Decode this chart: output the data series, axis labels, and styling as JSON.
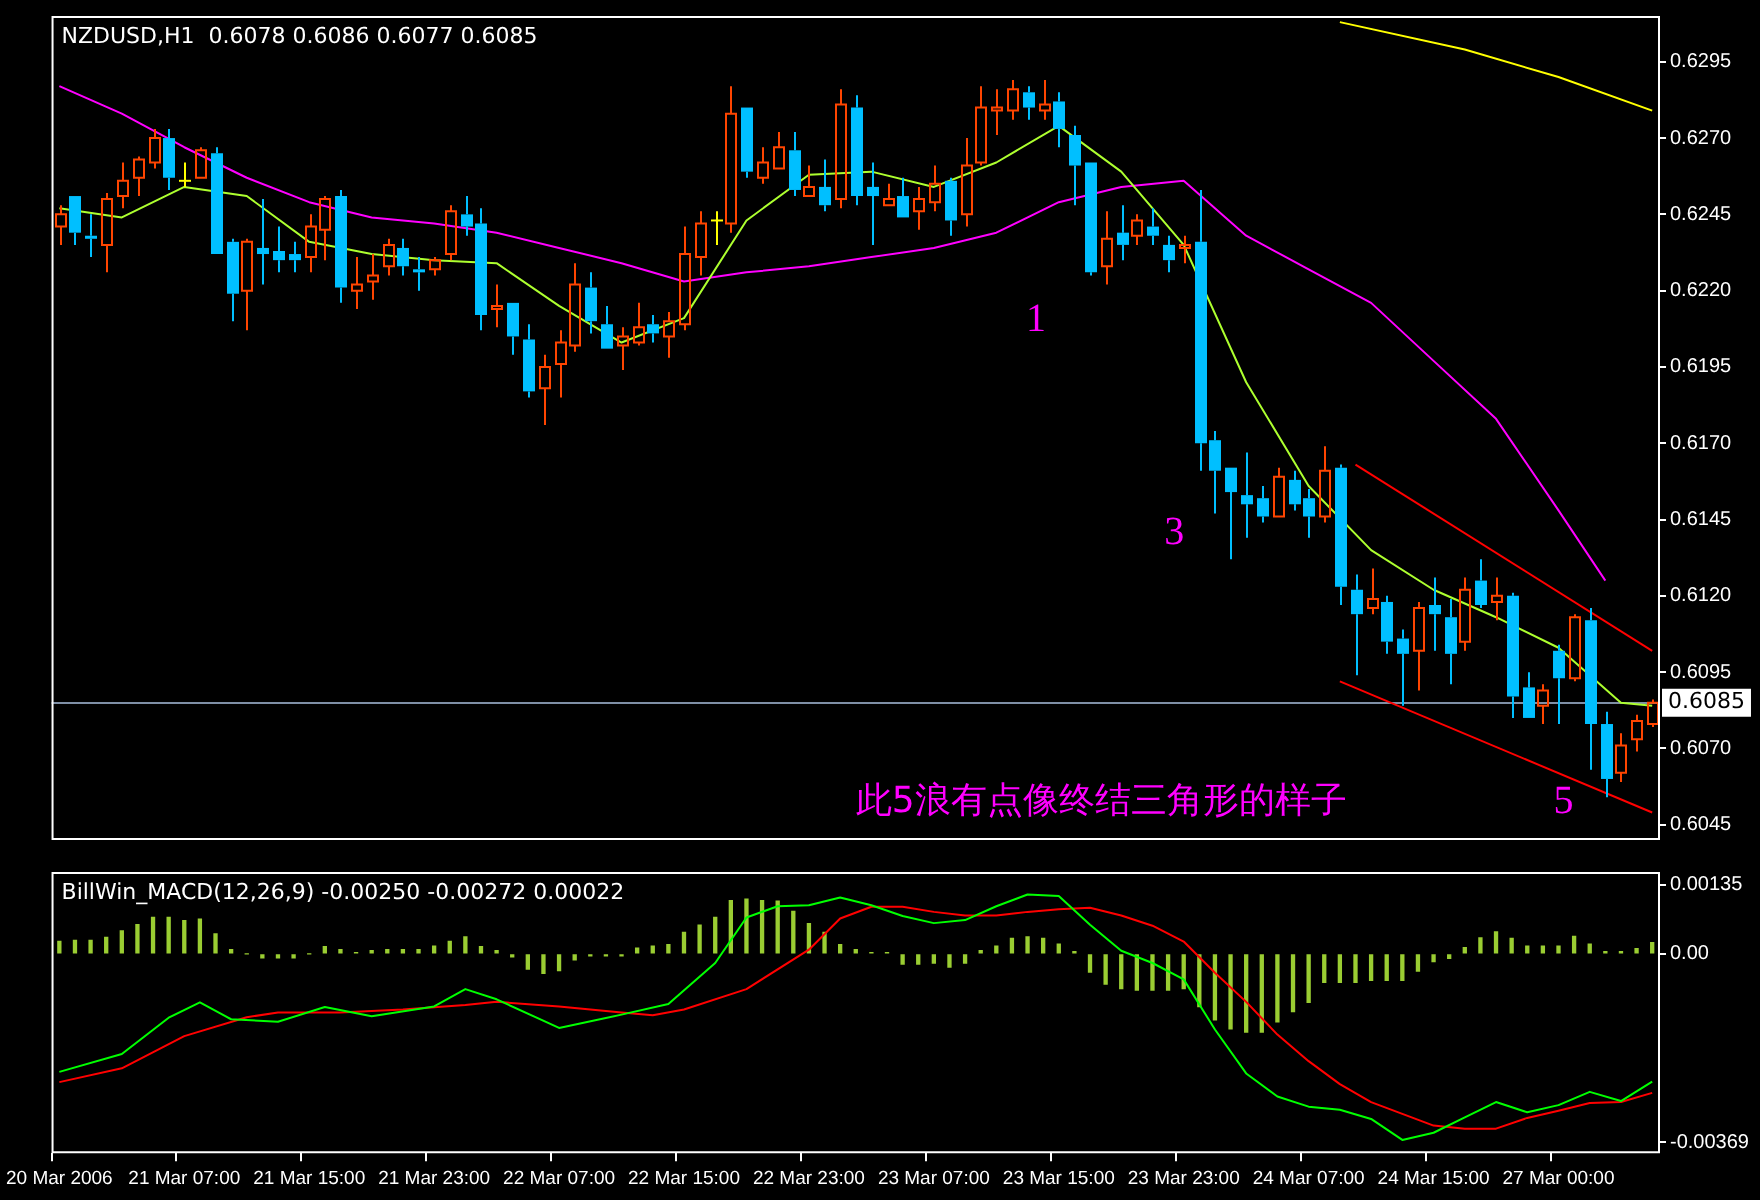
{
  "chart_data": [
    {
      "type": "candlestick",
      "title": "NZDUSD,H1  0.6078 0.6086 0.6077 0.6085",
      "tick_labels": "y",
      "categories": [
        null,
        null,
        null,
        null,
        null,
        null,
        null,
        null,
        null,
        null,
        null,
        null,
        null,
        null,
        null,
        null,
        null,
        null,
        null,
        null,
        null,
        null,
        null,
        null,
        null,
        null,
        null,
        null,
        null,
        null,
        null,
        null,
        null,
        null,
        null,
        null,
        null,
        null,
        null,
        null,
        null,
        null,
        null,
        null,
        null,
        null,
        null,
        null,
        null,
        null,
        null,
        null,
        null,
        null,
        null,
        null,
        null,
        null,
        null,
        null,
        null,
        null,
        null,
        null,
        null,
        null,
        null,
        null,
        null,
        null,
        null,
        null,
        null,
        null,
        null,
        null,
        null,
        null,
        null,
        null,
        null,
        null,
        null,
        null,
        null,
        null,
        null,
        null,
        null,
        null,
        null,
        null,
        null,
        null,
        null,
        null,
        null,
        null,
        null,
        null,
        null,
        null,
        null
      ],
      "ohlc": [
        [
          0.6241,
          0.6248,
          0.6235,
          0.6245
        ],
        [
          0.6251,
          0.6251,
          0.6235,
          0.6239
        ],
        [
          0.6238,
          0.6245,
          0.6231,
          0.6237
        ],
        [
          0.6235,
          0.6252,
          0.6226,
          0.625
        ],
        [
          0.6251,
          0.6262,
          0.6247,
          0.6256
        ],
        [
          0.6257,
          0.6264,
          0.6251,
          0.6263
        ],
        [
          0.6262,
          0.6273,
          0.626,
          0.627
        ],
        [
          0.627,
          0.6273,
          0.6253,
          0.6257
        ],
        [
          0.6256,
          0.6262,
          0.6254,
          0.6256
        ],
        [
          0.6257,
          0.6267,
          0.6257,
          0.6266
        ],
        [
          0.6265,
          0.6267,
          0.6232,
          0.6232
        ],
        [
          0.6236,
          0.6237,
          0.621,
          0.6219
        ],
        [
          0.622,
          0.6237,
          0.6207,
          0.6236
        ],
        [
          0.6234,
          0.625,
          0.6222,
          0.6232
        ],
        [
          0.6233,
          0.6241,
          0.6226,
          0.623
        ],
        [
          0.6232,
          0.6236,
          0.6226,
          0.623
        ],
        [
          0.6231,
          0.6245,
          0.6226,
          0.6241
        ],
        [
          0.624,
          0.6251,
          0.623,
          0.625
        ],
        [
          0.6251,
          0.6253,
          0.6216,
          0.6221
        ],
        [
          0.622,
          0.6231,
          0.6214,
          0.6222
        ],
        [
          0.6223,
          0.6232,
          0.6217,
          0.6225
        ],
        [
          0.6228,
          0.6237,
          0.6225,
          0.6235
        ],
        [
          0.6234,
          0.6237,
          0.6225,
          0.6228
        ],
        [
          0.6227,
          0.6231,
          0.622,
          0.6226
        ],
        [
          0.6227,
          0.6231,
          0.6225,
          0.623
        ],
        [
          0.6232,
          0.6248,
          0.623,
          0.6246
        ],
        [
          0.6245,
          0.6251,
          0.6238,
          0.6241
        ],
        [
          0.6242,
          0.6247,
          0.6207,
          0.6212
        ],
        [
          0.6214,
          0.6222,
          0.6208,
          0.6215
        ],
        [
          0.6216,
          0.6216,
          0.6199,
          0.6205
        ],
        [
          0.6204,
          0.6209,
          0.6185,
          0.6187
        ],
        [
          0.6188,
          0.6199,
          0.6176,
          0.6195
        ],
        [
          0.6196,
          0.6207,
          0.6185,
          0.6203
        ],
        [
          0.6202,
          0.6229,
          0.62,
          0.6222
        ],
        [
          0.6221,
          0.6226,
          0.6206,
          0.621
        ],
        [
          0.6209,
          0.6215,
          0.6201,
          0.6201
        ],
        [
          0.6202,
          0.6208,
          0.6194,
          0.6205
        ],
        [
          0.6203,
          0.6216,
          0.6202,
          0.6208
        ],
        [
          0.6209,
          0.6212,
          0.6203,
          0.6206
        ],
        [
          0.6205,
          0.6213,
          0.6198,
          0.621
        ],
        [
          0.6209,
          0.6241,
          0.6207,
          0.6232
        ],
        [
          0.6231,
          0.6246,
          0.6225,
          0.6242
        ],
        [
          0.6243,
          0.6246,
          0.6235,
          0.6243
        ],
        [
          0.6242,
          0.6287,
          0.6239,
          0.6278
        ],
        [
          0.628,
          0.628,
          0.6257,
          0.6259
        ],
        [
          0.6257,
          0.6267,
          0.6255,
          0.6262
        ],
        [
          0.626,
          0.6272,
          0.626,
          0.6267
        ],
        [
          0.6266,
          0.6272,
          0.6251,
          0.6253
        ],
        [
          0.6251,
          0.6261,
          0.6251,
          0.6254
        ],
        [
          0.6254,
          0.6263,
          0.6246,
          0.6248
        ],
        [
          0.625,
          0.6286,
          0.6247,
          0.6281
        ],
        [
          0.628,
          0.6284,
          0.6248,
          0.6251
        ],
        [
          0.6254,
          0.6262,
          0.6235,
          0.6251
        ],
        [
          0.6248,
          0.6255,
          0.6248,
          0.625
        ],
        [
          0.6251,
          0.6257,
          0.6244,
          0.6244
        ],
        [
          0.6246,
          0.6254,
          0.624,
          0.625
        ],
        [
          0.6249,
          0.6261,
          0.6246,
          0.6255
        ],
        [
          0.6256,
          0.6257,
          0.6238,
          0.6243
        ],
        [
          0.6245,
          0.627,
          0.6241,
          0.6261
        ],
        [
          0.6262,
          0.6287,
          0.6261,
          0.628
        ],
        [
          0.6279,
          0.6286,
          0.6271,
          0.628
        ],
        [
          0.6279,
          0.6289,
          0.6276,
          0.6286
        ],
        [
          0.6285,
          0.6287,
          0.6276,
          0.628
        ],
        [
          0.6279,
          0.6289,
          0.6276,
          0.6281
        ],
        [
          0.6282,
          0.6285,
          0.6267,
          0.6273
        ],
        [
          0.6271,
          0.6274,
          0.6248,
          0.6261
        ],
        [
          0.6262,
          0.6262,
          0.6225,
          0.6226
        ],
        [
          0.6228,
          0.6246,
          0.6222,
          0.6237
        ],
        [
          0.6239,
          0.6248,
          0.623,
          0.6235
        ],
        [
          0.6238,
          0.6245,
          0.6235,
          0.6243
        ],
        [
          0.6241,
          0.6247,
          0.6235,
          0.6238
        ],
        [
          0.6235,
          0.6238,
          0.6226,
          0.623
        ],
        [
          0.6234,
          0.6238,
          0.6229,
          0.6235
        ],
        [
          0.6236,
          0.6253,
          0.6161,
          0.617
        ],
        [
          0.6171,
          0.6174,
          0.6147,
          0.6161
        ],
        [
          0.6162,
          0.6162,
          0.6132,
          0.6154
        ],
        [
          0.6153,
          0.6167,
          0.6139,
          0.615
        ],
        [
          0.6152,
          0.6156,
          0.6144,
          0.6146
        ],
        [
          0.6146,
          0.6162,
          0.6146,
          0.6159
        ],
        [
          0.6158,
          0.6161,
          0.6148,
          0.615
        ],
        [
          0.6152,
          0.6155,
          0.6139,
          0.6146
        ],
        [
          0.6146,
          0.6169,
          0.6144,
          0.6161
        ],
        [
          0.6162,
          0.6163,
          0.6117,
          0.6123
        ],
        [
          0.6122,
          0.6127,
          0.6094,
          0.6114
        ],
        [
          0.6116,
          0.6129,
          0.6114,
          0.6119
        ],
        [
          0.6118,
          0.612,
          0.6101,
          0.6105
        ],
        [
          0.6106,
          0.6109,
          0.6084,
          0.6101
        ],
        [
          0.6102,
          0.6118,
          0.6089,
          0.6116
        ],
        [
          0.6117,
          0.6126,
          0.6102,
          0.6114
        ],
        [
          0.6113,
          0.6119,
          0.6091,
          0.6101
        ],
        [
          0.6105,
          0.6126,
          0.6102,
          0.6122
        ],
        [
          0.6125,
          0.6132,
          0.6116,
          0.6117
        ],
        [
          0.6118,
          0.6126,
          0.6112,
          0.612
        ],
        [
          0.612,
          0.6121,
          0.608,
          0.6087
        ],
        [
          0.609,
          0.6095,
          0.608,
          0.608
        ],
        [
          0.6084,
          0.6091,
          0.6078,
          0.6089
        ],
        [
          0.6102,
          0.6104,
          0.6078,
          0.6093
        ],
        [
          0.6093,
          0.6114,
          0.6092,
          0.6113
        ],
        [
          0.6112,
          0.6116,
          0.6063,
          0.6078
        ],
        [
          0.6078,
          0.6082,
          0.6054,
          0.606
        ],
        [
          0.6062,
          0.6075,
          0.6059,
          0.6071
        ],
        [
          0.6073,
          0.6081,
          0.6069,
          0.6079
        ],
        [
          0.6078,
          0.6086,
          0.6077,
          0.6085
        ]
      ],
      "colors": [
        "#ff4500",
        "#00bfff",
        "#00bfff",
        "#ff4500",
        "#ff4500",
        "#ff4500",
        "#ff4500",
        "#00bfff",
        "#ffff00",
        "#ff4500",
        "#00bfff",
        "#00bfff",
        "#ff4500",
        "#00bfff",
        "#00bfff",
        "#00bfff",
        "#ff4500",
        "#ff4500",
        "#00bfff",
        "#ff4500",
        "#ff4500",
        "#ff4500",
        "#00bfff",
        "#00bfff",
        "#ff4500",
        "#ff4500",
        "#00bfff",
        "#00bfff",
        "#ff4500",
        "#00bfff",
        "#00bfff",
        "#ff4500",
        "#ff4500",
        "#ff4500",
        "#00bfff",
        "#00bfff",
        "#ff4500",
        "#ff4500",
        "#00bfff",
        "#ff4500",
        "#ff4500",
        "#ff4500",
        "#ffff00",
        "#ff4500",
        "#00bfff",
        "#ff4500",
        "#ff4500",
        "#00bfff",
        "#ff4500",
        "#00bfff",
        "#ff4500",
        "#00bfff",
        "#00bfff",
        "#ff4500",
        "#00bfff",
        "#ff4500",
        "#ff4500",
        "#00bfff",
        "#ff4500",
        "#ff4500",
        "#ff4500",
        "#ff4500",
        "#00bfff",
        "#ff4500",
        "#00bfff",
        "#00bfff",
        "#00bfff",
        "#ff4500",
        "#00bfff",
        "#ff4500",
        "#00bfff",
        "#00bfff",
        "#ff4500",
        "#00bfff",
        "#00bfff",
        "#00bfff",
        "#00bfff",
        "#00bfff",
        "#ff4500",
        "#00bfff",
        "#00bfff",
        "#ff4500",
        "#00bfff",
        "#00bfff",
        "#ff4500",
        "#00bfff",
        "#00bfff",
        "#ff4500",
        "#00bfff",
        "#00bfff",
        "#ff4500",
        "#00bfff",
        "#ff4500",
        "#00bfff",
        "#00bfff",
        "#ff4500",
        "#00bfff",
        "#ff4500",
        "#00bfff",
        "#00bfff",
        "#ff4500",
        "#ff4500",
        "#ff4500"
      ],
      "series": [
        {
          "type": "line",
          "color": "#adff2f",
          "values": [
            0.6247,
            null,
            null,
            null,
            0.6244,
            null,
            null,
            null,
            0.6254,
            null,
            null,
            null,
            0.6251,
            null,
            null,
            null,
            0.6236,
            null,
            null,
            null,
            0.6232,
            null,
            null,
            null,
            0.623,
            null,
            null,
            null,
            0.6229,
            null,
            null,
            null,
            0.6215,
            null,
            null,
            null,
            0.6203,
            null,
            null,
            null,
            0.6211,
            null,
            null,
            null,
            0.6243,
            null,
            null,
            null,
            0.6258,
            null,
            null,
            null,
            0.6259,
            null,
            null,
            null,
            0.6254,
            null,
            null,
            null,
            0.6262,
            null,
            null,
            null,
            0.6274,
            null,
            null,
            null,
            0.6259,
            null,
            null,
            null,
            0.6235,
            null,
            null,
            null,
            0.619,
            null,
            null,
            null,
            0.6156,
            null,
            null,
            null,
            0.6135,
            null,
            null,
            null,
            0.6122,
            null,
            null,
            null,
            0.6113,
            null,
            null,
            null,
            0.6103,
            null,
            null,
            null,
            0.6085,
            null,
            0.6084
          ]
        },
        {
          "type": "line",
          "color": "#ff00ff",
          "values": [
            0.6287,
            null,
            null,
            null,
            0.6278,
            null,
            null,
            null,
            0.6267,
            null,
            null,
            null,
            0.6257,
            null,
            null,
            null,
            0.6249,
            null,
            null,
            null,
            0.6244,
            null,
            null,
            null,
            0.6242,
            null,
            null,
            null,
            0.6239,
            null,
            null,
            null,
            0.6234,
            null,
            null,
            null,
            0.6229,
            null,
            null,
            null,
            0.6223,
            null,
            null,
            null,
            0.6226,
            null,
            null,
            null,
            0.6228,
            null,
            null,
            null,
            0.6231,
            null,
            null,
            null,
            0.6234,
            null,
            null,
            null,
            0.6239,
            null,
            null,
            null,
            0.6249,
            null,
            null,
            null,
            0.6254,
            null,
            null,
            null,
            0.6256,
            null,
            null,
            null,
            0.6238,
            null,
            null,
            null,
            0.6227,
            null,
            null,
            null,
            0.6216,
            null,
            null,
            null,
            0.6197,
            null,
            null,
            null,
            0.6178,
            null,
            null,
            null,
            0.6148,
            null,
            null,
            0.6125,
            null,
            null,
            null
          ]
        },
        {
          "type": "line",
          "color": "#ffff00",
          "values": [
            null,
            null,
            null,
            null,
            null,
            null,
            null,
            null,
            null,
            null,
            null,
            null,
            null,
            null,
            null,
            null,
            null,
            null,
            null,
            null,
            null,
            null,
            null,
            null,
            null,
            null,
            null,
            null,
            null,
            null,
            null,
            null,
            null,
            null,
            null,
            null,
            null,
            null,
            null,
            null,
            null,
            null,
            null,
            null,
            null,
            null,
            null,
            null,
            null,
            null,
            null,
            null,
            null,
            null,
            null,
            null,
            null,
            null,
            null,
            null,
            null,
            null,
            null,
            null,
            null,
            null,
            null,
            null,
            null,
            null,
            null,
            null,
            null,
            null,
            null,
            null,
            null,
            null,
            null,
            null,
            null,
            null,
            0.6308,
            null,
            null,
            null,
            null,
            null,
            null,
            null,
            0.6299,
            null,
            null,
            null,
            null,
            null,
            0.629,
            null,
            null,
            null,
            null,
            null,
            0.6279
          ]
        },
        {
          "type": "line",
          "color": "#ff0000",
          "values": [
            null,
            null,
            null,
            null,
            null,
            null,
            null,
            null,
            null,
            null,
            null,
            null,
            null,
            null,
            null,
            null,
            null,
            null,
            null,
            null,
            null,
            null,
            null,
            null,
            null,
            null,
            null,
            null,
            null,
            null,
            null,
            null,
            null,
            null,
            null,
            null,
            null,
            null,
            null,
            null,
            null,
            null,
            null,
            null,
            null,
            null,
            null,
            null,
            null,
            null,
            null,
            null,
            null,
            null,
            null,
            null,
            null,
            null,
            null,
            null,
            null,
            null,
            null,
            null,
            null,
            null,
            null,
            null,
            null,
            null,
            null,
            null,
            null,
            null,
            null,
            null,
            null,
            null,
            null,
            null,
            null,
            null,
            null,
            0.6163,
            null,
            null,
            null,
            null,
            null,
            null,
            null,
            null,
            null,
            null,
            null,
            null,
            null,
            null,
            null,
            null,
            null,
            null,
            0.6102
          ]
        },
        {
          "type": "line",
          "color": "#ff0000",
          "values": [
            null,
            null,
            null,
            null,
            null,
            null,
            null,
            null,
            null,
            null,
            null,
            null,
            null,
            null,
            null,
            null,
            null,
            null,
            null,
            null,
            null,
            null,
            null,
            null,
            null,
            null,
            null,
            null,
            null,
            null,
            null,
            null,
            null,
            null,
            null,
            null,
            null,
            null,
            null,
            null,
            null,
            null,
            null,
            null,
            null,
            null,
            null,
            null,
            null,
            null,
            null,
            null,
            null,
            null,
            null,
            null,
            null,
            null,
            null,
            null,
            null,
            null,
            null,
            null,
            null,
            null,
            null,
            null,
            null,
            null,
            null,
            null,
            null,
            null,
            null,
            null,
            null,
            null,
            null,
            null,
            null,
            null,
            0.6092,
            null,
            null,
            null,
            null,
            null,
            null,
            null,
            null,
            null,
            null,
            null,
            null,
            null,
            null,
            null,
            null,
            null,
            null,
            null,
            0.6049
          ]
        }
      ],
      "ylim": [
        0.604,
        0.631
      ],
      "yticks": [
        0.6295,
        {
          "value": 0.627,
          "label": "0.6270"
        },
        0.6245,
        {
          "value": 0.622,
          "label": "0.6220"
        },
        0.6195,
        {
          "value": 0.617,
          "label": "0.6170"
        },
        0.6145,
        {
          "value": 0.612,
          "label": "0.6120"
        },
        0.6095,
        {
          "value": 0.607,
          "label": "0.6070"
        },
        0.6045
      ],
      "ref_lines": [
        {
          "axis": "y",
          "value": 0.6085,
          "label": "0.6085",
          "color": "#7f8fa6"
        }
      ],
      "annotations": [
        "1",
        "3",
        "5",
        "此5浪有点像终结三角形的样子"
      ]
    },
    {
      "type": "bar",
      "title": "BillWin_MACD(12,26,9) -0.00250 -0.00272 0.00022",
      "categories": [
        "20 Mar 2006",
        null,
        null,
        null,
        null,
        null,
        null,
        null,
        "21 Mar 07:00",
        null,
        null,
        null,
        null,
        null,
        null,
        null,
        "21 Mar 15:00",
        null,
        null,
        null,
        null,
        null,
        null,
        null,
        "21 Mar 23:00",
        null,
        null,
        null,
        null,
        null,
        null,
        null,
        "22 Mar 07:00",
        null,
        null,
        null,
        null,
        null,
        null,
        null,
        "22 Mar 15:00",
        null,
        null,
        null,
        null,
        null,
        null,
        null,
        "22 Mar 23:00",
        null,
        null,
        null,
        null,
        null,
        null,
        null,
        "23 Mar 07:00",
        null,
        null,
        null,
        null,
        null,
        null,
        null,
        "23 Mar 15:00",
        null,
        null,
        null,
        null,
        null,
        null,
        null,
        "23 Mar 23:00",
        null,
        null,
        null,
        null,
        null,
        null,
        null,
        "24 Mar 07:00",
        null,
        null,
        null,
        null,
        null,
        null,
        null,
        "24 Mar 15:00",
        null,
        null,
        null,
        null,
        null,
        null,
        null,
        "27 Mar 00:00",
        null,
        null,
        null,
        null,
        null,
        null
      ],
      "series": [
        {
          "type": "bar",
          "color": "#9acd32",
          "values": [
            0.00024,
            0.00026,
            0.00026,
            0.00032,
            0.00045,
            0.00057,
            0.00071,
            0.00071,
            0.00065,
            0.00068,
            0.00039,
            8e-05,
            0,
            -8e-05,
            -8e-05,
            -8e-05,
            0,
            0.00014,
            8e-05,
            2e-05,
            6e-05,
            8e-05,
            8e-05,
            8e-05,
            0.00015,
            0.00024,
            0.00033,
            0.00014,
            6e-05,
            -6e-05,
            -0.0003,
            -0.00038,
            -0.00033,
            -0.00012,
            -4e-05,
            -4e-05,
            -4e-05,
            0.00011,
            0.00015,
            0.00018,
            0.00042,
            0.00056,
            0.00071,
            0.00104,
            0.00107,
            0.00104,
            0.00103,
            0.00083,
            0.00059,
            0.00042,
            0.00018,
            8e-05,
            2e-05,
            2e-05,
            -0.0002,
            -0.0002,
            -0.00018,
            -0.00026,
            -0.00018,
            6e-05,
            0.00015,
            0.0003,
            0.00033,
            0.0003,
            0.00019,
            4e-05,
            -0.00036,
            -0.00059,
            -0.00068,
            -0.00071,
            -0.00071,
            -0.00071,
            -0.00068,
            -0.00103,
            -0.00129,
            -0.00147,
            -0.00153,
            -0.00153,
            -0.00133,
            -0.00113,
            -0.00095,
            -0.00056,
            -0.00056,
            -0.00056,
            -0.00052,
            -0.00052,
            -0.00052,
            -0.00034,
            -0.00015,
            -9e-05,
            0.00012,
            0.00031,
            0.00043,
            0.0003,
            0.00015,
            0.00015,
            0.00015,
            0.00034,
            0.00019,
            4e-05,
            4e-05,
            0.0001,
            0.00022
          ]
        },
        {
          "type": "line",
          "color": "#00ff00",
          "values": [
            -0.00231,
            null,
            null,
            null,
            -0.00196,
            null,
            null,
            -0.00125,
            null,
            -0.00095,
            null,
            -0.00128,
            null,
            null,
            -0.00133,
            null,
            null,
            -0.00104,
            null,
            null,
            -0.00122,
            null,
            null,
            null,
            -0.00103,
            null,
            -0.00069,
            null,
            -0.00089,
            null,
            null,
            null,
            -0.00145,
            null,
            null,
            null,
            -0.00119,
            null,
            null,
            -0.00098,
            null,
            null,
            -0.00018,
            null,
            0.00071,
            null,
            0.00093,
            null,
            0.00095,
            null,
            0.0011,
            null,
            0.00095,
            null,
            0.00074,
            null,
            0.0006,
            null,
            0.00066,
            null,
            0.00093,
            null,
            0.00116,
            null,
            0.00113,
            null,
            0.00057,
            null,
            6e-05,
            null,
            -0.00018,
            null,
            -0.0005,
            null,
            -0.00148,
            null,
            -0.00234,
            null,
            -0.00279,
            null,
            -0.00299,
            null,
            -0.00305,
            null,
            -0.00323,
            null,
            -0.00364,
            null,
            -0.0035,
            null,
            -0.0032,
            null,
            -0.0029,
            null,
            -0.0031,
            null,
            -0.00296,
            null,
            -0.0027,
            null,
            -0.00288,
            null,
            -0.0025
          ]
        },
        {
          "type": "line",
          "color": "#ff0000",
          "values": [
            -0.00251,
            null,
            null,
            null,
            -0.00224,
            null,
            null,
            null,
            -0.00161,
            null,
            null,
            null,
            -0.00124,
            null,
            -0.00115,
            null,
            null,
            null,
            -0.00115,
            null,
            null,
            null,
            -0.00109,
            null,
            null,
            null,
            -0.001,
            null,
            -0.00094,
            null,
            null,
            null,
            -0.00103,
            null,
            null,
            null,
            -0.00115,
            null,
            -0.0012,
            null,
            -0.00109,
            null,
            null,
            null,
            -0.00069,
            null,
            null,
            null,
            8e-05,
            null,
            0.00069,
            null,
            0.00092,
            null,
            0.00092,
            null,
            0.00082,
            null,
            0.00075,
            null,
            0.00075,
            null,
            0.00082,
            null,
            0.00087,
            null,
            0.0009,
            null,
            0.00075,
            null,
            0.00055,
            null,
            0.00024,
            null,
            -0.00037,
            null,
            -0.00094,
            null,
            -0.00158,
            null,
            -0.0021,
            null,
            -0.00255,
            null,
            -0.0029,
            null,
            -0.00313,
            null,
            -0.00336,
            null,
            -0.00342,
            null,
            -0.00342,
            null,
            -0.00321,
            null,
            -0.00307,
            null,
            -0.00292,
            null,
            -0.0029,
            null,
            -0.00272
          ]
        }
      ],
      "ylim": [
        -0.0039,
        0.0016
      ],
      "yticks": [
        0.00135,
        {
          "value": 0,
          "label": "0.00"
        },
        -0.00369
      ]
    }
  ]
}
